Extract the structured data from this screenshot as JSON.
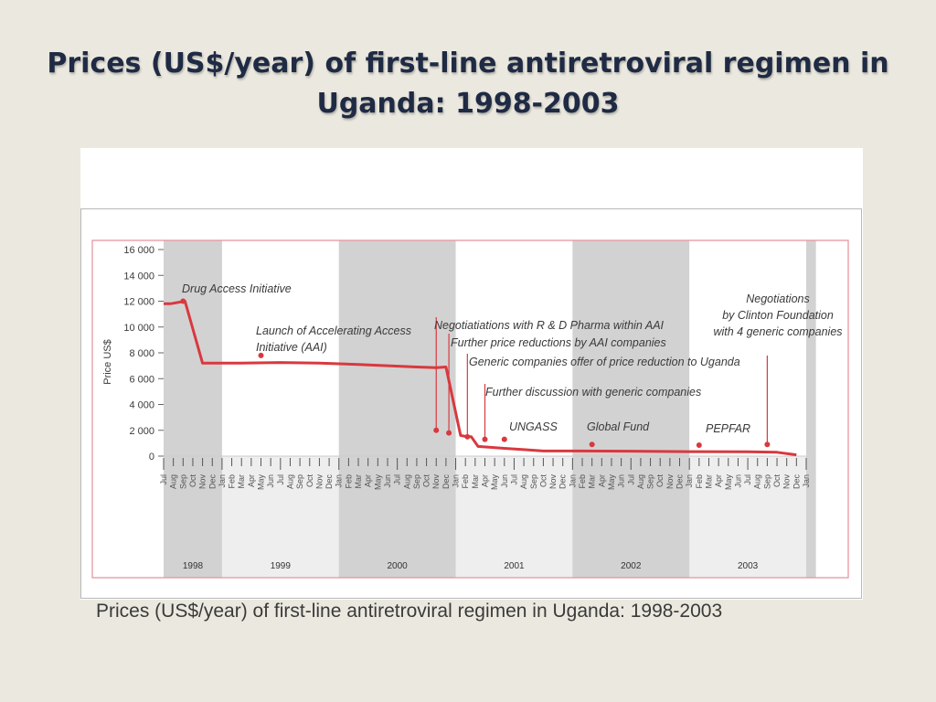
{
  "slide": {
    "title_line1": "Prices (US$/year) of first-line antiretroviral regimen in",
    "title_line2": "Uganda: 1998-2003",
    "caption": "Prices (US$/year) of first-line antiretroviral regimen in Uganda: 1998-2003"
  },
  "colors": {
    "background": "#ebe9df",
    "series": "#d8393f",
    "year_band": "#d3d2d2",
    "frame": "#e3909a",
    "title": "#1f2a44"
  },
  "chart_data": {
    "type": "line",
    "title": "",
    "xlabel": "",
    "ylabel": "Price US$",
    "ylim": [
      0,
      16000
    ],
    "yticks": [
      0,
      2000,
      4000,
      6000,
      8000,
      10000,
      12000,
      14000,
      16000
    ],
    "ytick_labels": [
      "0",
      "2 000",
      "4 000",
      "6 000",
      "8 000",
      "10 000",
      "12 000",
      "14 000",
      "16 000"
    ],
    "grid": false,
    "months": [
      "Jul",
      "Aug",
      "Sep",
      "Oct",
      "Nov",
      "Dec",
      "Jan",
      "Feb",
      "Mar",
      "Apr",
      "May",
      "Jun",
      "Jul",
      "Aug",
      "Sep",
      "Oct",
      "Nov",
      "Dec",
      "Jan",
      "Feb",
      "Mar",
      "Apr",
      "May",
      "Jun",
      "Jul",
      "Aug",
      "Sep",
      "Oct",
      "Nov",
      "Dec",
      "Jan",
      "Feb",
      "Mar",
      "Apr",
      "May",
      "Jun",
      "Jul",
      "Aug",
      "Sep",
      "Oct",
      "Nov",
      "Dec",
      "Jan",
      "Feb",
      "Mar",
      "Apr",
      "May",
      "Jun",
      "Jul",
      "Aug",
      "Sep",
      "Oct",
      "Nov",
      "Dec",
      "Jan",
      "Feb",
      "Mar",
      "Apr",
      "May",
      "Jun",
      "Jul",
      "Aug",
      "Sep",
      "Oct",
      "Nov",
      "Dec",
      "Jan"
    ],
    "years": [
      {
        "label": "1998",
        "start": 0,
        "end": 6,
        "shaded": true
      },
      {
        "label": "1999",
        "start": 6,
        "end": 18,
        "shaded": false
      },
      {
        "label": "2000",
        "start": 18,
        "end": 30,
        "shaded": true
      },
      {
        "label": "2001",
        "start": 30,
        "end": 42,
        "shaded": false
      },
      {
        "label": "2002",
        "start": 42,
        "end": 54,
        "shaded": true
      },
      {
        "label": "2003",
        "start": 54,
        "end": 66,
        "shaded": false
      },
      {
        "label": "",
        "start": 66,
        "end": 67,
        "shaded": true
      }
    ],
    "series": [
      {
        "x": [
          0,
          0.7,
          2.2,
          4.0,
          8.0,
          12.0,
          16.0,
          20.0,
          26.0,
          28.0,
          29.0,
          30.5,
          31.2,
          31.6,
          32.3,
          35.0,
          37.0,
          39.0,
          42.0,
          48.0,
          54.0,
          60.0,
          63.0,
          65.0
        ],
        "y": [
          11800,
          11800,
          12000,
          7200,
          7200,
          7250,
          7200,
          7100,
          6900,
          6850,
          6900,
          1600,
          1500,
          1500,
          750,
          600,
          500,
          400,
          400,
          380,
          350,
          330,
          300,
          100
        ]
      }
    ],
    "events": [
      {
        "x": 2,
        "y": 12000,
        "label_lines": [
          "Drug Access Initiative"
        ],
        "align": "start",
        "leader": false
      },
      {
        "x": 10,
        "y": 7800,
        "label_lines": [
          "Launch of Accelerating Access",
          "   Initiative (AAI)"
        ],
        "align": "start",
        "leader": false
      },
      {
        "x": 28,
        "y": 2000,
        "label_lines": [
          "Negotiatiations with R & D Pharma within AAI"
        ],
        "align": "start",
        "leader": true
      },
      {
        "x": 29.3,
        "y": 1800,
        "label_lines": [
          "Further price reductions by AAI companies"
        ],
        "align": "start",
        "leader": true
      },
      {
        "x": 31.2,
        "y": 1500,
        "label_lines": [
          "Generic companies offer of price reduction to Uganda"
        ],
        "align": "start",
        "leader": true
      },
      {
        "x": 33,
        "y": 1300,
        "label_lines": [
          "Further discussion with generic companies"
        ],
        "align": "start",
        "leader": true
      },
      {
        "x": 35,
        "y": 1300,
        "label_lines": [
          "UNGASS"
        ],
        "align": "start",
        "leader": false
      },
      {
        "x": 44,
        "y": 900,
        "label_lines": [
          "Global Fund"
        ],
        "align": "start",
        "leader": false
      },
      {
        "x": 55,
        "y": 850,
        "label_lines": [
          "PEPFAR"
        ],
        "align": "start",
        "leader": false
      },
      {
        "x": 62,
        "y": 900,
        "label_lines": [
          "Negotiations",
          "by Clinton Foundation",
          "with 4 generic companies"
        ],
        "align": "middle",
        "leader": true
      }
    ]
  }
}
